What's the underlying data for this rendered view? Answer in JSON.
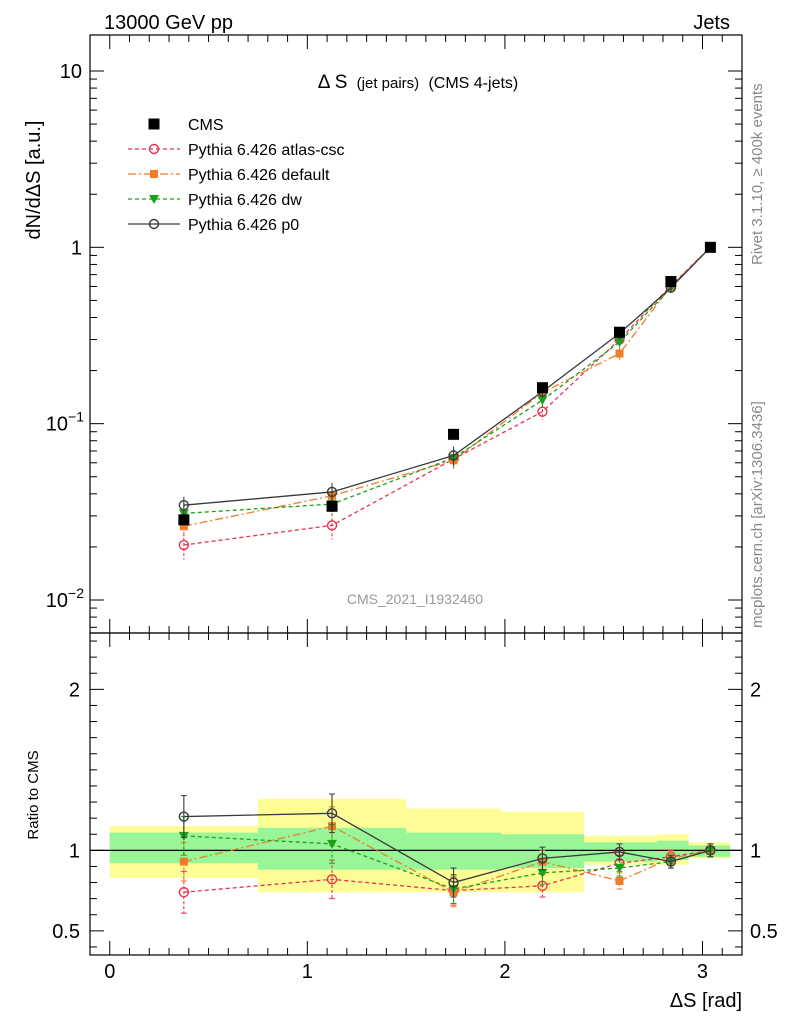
{
  "header": {
    "left": "13000 GeV pp",
    "right": "Jets"
  },
  "side_labels": {
    "rivet": "Rivet 3.1.10, ≥ 400k events",
    "mcplots": "mcplots.cern.ch [arXiv:1306.3436]"
  },
  "watermark": "CMS_2021_I1932460",
  "chart_data": [
    {
      "type": "line",
      "title_symbol": "Δ S",
      "title_small": "(jet pairs)",
      "title_rest": "(CMS 4-jets)",
      "ylabel": "dN/dΔS [a.u.]",
      "yscale": "log",
      "ylim": [
        0.0065,
        16
      ],
      "xlim": [
        -0.1,
        3.2
      ],
      "ytick_labels": {
        "y10": "10",
        "y1": "1",
        "y01_base": "10",
        "y01_exp": "−1",
        "y001_base": "10",
        "y001_exp": "−2"
      },
      "x": [
        0.375,
        1.125,
        1.74,
        2.19,
        2.58,
        2.84,
        3.04
      ],
      "series": [
        {
          "name": "CMS",
          "color": "#000000",
          "marker": "square",
          "values": [
            0.0285,
            0.034,
            0.087,
            0.16,
            0.33,
            0.64,
            1.0
          ],
          "errors": [
            0.002,
            0.0025,
            0.004,
            0.006,
            0.01,
            0.02,
            0.02
          ]
        },
        {
          "name": "Pythia 6.426 atlas-csc",
          "color": "#e8324f",
          "marker": "circle-open",
          "dash": "4,3",
          "values": [
            0.0205,
            0.0265,
            0.063,
            0.117,
            0.3,
            0.605,
            1.0
          ],
          "errors": [
            0.0035,
            0.0045,
            0.008,
            0.012,
            0.02,
            0.03,
            0.02
          ]
        },
        {
          "name": "Pythia 6.426 default",
          "color": "#f07d28",
          "marker": "square-filled",
          "dash": "8,3,2,3",
          "values": [
            0.0262,
            0.039,
            0.062,
            0.15,
            0.25,
            0.6,
            1.0
          ],
          "errors": [
            0.0035,
            0.005,
            0.008,
            0.012,
            0.02,
            0.03,
            0.02
          ]
        },
        {
          "name": "Pythia 6.426 dw",
          "color": "#1aa31a",
          "marker": "triangle-down",
          "dash": "4,3",
          "values": [
            0.031,
            0.035,
            0.064,
            0.136,
            0.29,
            0.59,
            1.0
          ],
          "errors": [
            0.004,
            0.005,
            0.008,
            0.012,
            0.02,
            0.03,
            0.02
          ]
        },
        {
          "name": "Pythia 6.426 p0",
          "color": "#3a3a3a",
          "marker": "circle-open",
          "dash": "",
          "values": [
            0.0345,
            0.041,
            0.066,
            0.152,
            0.325,
            0.59,
            1.0
          ],
          "errors": [
            0.004,
            0.005,
            0.008,
            0.012,
            0.02,
            0.03,
            0.02
          ]
        }
      ]
    },
    {
      "type": "line",
      "ylabel": "Ratio to CMS",
      "ylim": [
        0.35,
        2.35
      ],
      "xlim": [
        -0.1,
        3.2
      ],
      "xlabel": "ΔS [rad]",
      "x_ticks": [
        0,
        1,
        2,
        3
      ],
      "x_tick_labels": [
        "0",
        "1",
        "2",
        "3"
      ],
      "y_ticks": [
        0.5,
        1,
        2
      ],
      "y_tick_labels": [
        "0.5",
        "1",
        "2"
      ],
      "bands": [
        {
          "x0": 0.0,
          "x1": 0.75,
          "stat": [
            0.92,
            1.11
          ],
          "total": [
            0.83,
            1.15
          ]
        },
        {
          "x0": 0.75,
          "x1": 1.5,
          "stat": [
            0.88,
            1.14
          ],
          "total": [
            0.74,
            1.32
          ]
        },
        {
          "x0": 1.5,
          "x1": 1.98,
          "stat": [
            0.88,
            1.11
          ],
          "total": [
            0.74,
            1.26
          ]
        },
        {
          "x0": 1.98,
          "x1": 2.4,
          "stat": [
            0.89,
            1.1
          ],
          "total": [
            0.74,
            1.24
          ]
        },
        {
          "x0": 2.4,
          "x1": 2.77,
          "stat": [
            0.93,
            1.05
          ],
          "total": [
            0.91,
            1.09
          ]
        },
        {
          "x0": 2.77,
          "x1": 2.93,
          "stat": [
            0.94,
            1.06
          ],
          "total": [
            0.91,
            1.1
          ]
        },
        {
          "x0": 2.93,
          "x1": 3.14,
          "stat": [
            0.96,
            1.03
          ],
          "total": [
            0.95,
            1.05
          ]
        }
      ],
      "series": [
        {
          "name": "Pythia 6.426 atlas-csc",
          "values": [
            0.74,
            0.82,
            0.75,
            0.78,
            0.92,
            0.96,
            1.0
          ],
          "errors": [
            0.13,
            0.12,
            0.09,
            0.07,
            0.05,
            0.04,
            0.04
          ]
        },
        {
          "name": "Pythia 6.426 default",
          "values": [
            0.93,
            1.15,
            0.74,
            0.93,
            0.81,
            0.95,
            1.0
          ],
          "errors": [
            0.12,
            0.12,
            0.09,
            0.07,
            0.05,
            0.04,
            0.04
          ]
        },
        {
          "name": "Pythia 6.426 dw",
          "values": [
            1.09,
            1.04,
            0.76,
            0.86,
            0.89,
            0.93,
            1.0
          ],
          "errors": [
            0.12,
            0.12,
            0.09,
            0.07,
            0.05,
            0.04,
            0.04
          ]
        },
        {
          "name": "Pythia 6.426 p0",
          "values": [
            1.21,
            1.23,
            0.8,
            0.95,
            0.99,
            0.93,
            1.0
          ],
          "errors": [
            0.13,
            0.12,
            0.09,
            0.07,
            0.05,
            0.04,
            0.04
          ]
        }
      ]
    }
  ]
}
